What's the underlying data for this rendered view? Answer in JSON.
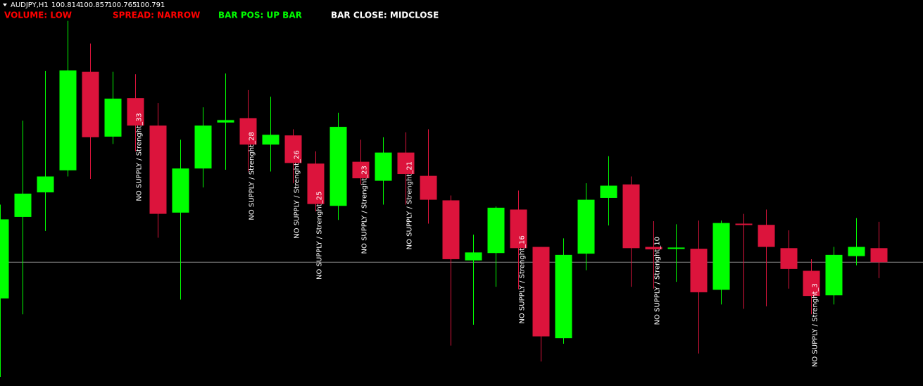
{
  "chart_data": {
    "type": "candlestick",
    "symbol": "AUDJPY,H1",
    "quote": [
      100.814,
      100.857,
      100.765,
      100.791
    ],
    "status": [
      {
        "label": "VOLUME: LOW",
        "color": "#ff0000"
      },
      {
        "label": "SPREAD: NARROW",
        "color": "#ff0000"
      },
      {
        "label": "BAR POS: UP BAR",
        "color": "#00ff00"
      },
      {
        "label": "BAR CLOSE: MIDCLOSE",
        "color": "#ffffff"
      }
    ],
    "up_color": "#00ff00",
    "down_color": "#dc143c",
    "ylim": [
      100.589,
      101.219
    ],
    "open": [
      100.732,
      100.865,
      100.905,
      100.941,
      101.102,
      100.996,
      101.059,
      101.014,
      100.872,
      100.944,
      101.019,
      101.026,
      100.983,
      100.998,
      100.952,
      100.883,
      100.955,
      100.924,
      100.97,
      100.932,
      100.892,
      100.794,
      100.806,
      100.877,
      100.816,
      100.667,
      100.805,
      100.896,
      100.918,
      100.816,
      100.813,
      100.813,
      100.746,
      100.854,
      100.852,
      100.814,
      100.777,
      100.737,
      100.801,
      100.814
    ],
    "high": [
      100.885,
      101.022,
      101.103,
      101.185,
      101.148,
      101.102,
      101.098,
      101.051,
      100.991,
      101.044,
      101.099,
      101.072,
      101.061,
      101.008,
      100.972,
      101.035,
      100.991,
      100.995,
      101.003,
      101.008,
      100.9,
      100.836,
      100.882,
      100.908,
      100.816,
      100.83,
      100.92,
      100.964,
      100.931,
      100.858,
      100.853,
      100.859,
      100.859,
      100.87,
      100.877,
      100.843,
      100.796,
      100.816,
      100.863,
      100.857
    ],
    "low": [
      100.604,
      100.706,
      100.842,
      100.931,
      100.927,
      100.984,
      100.972,
      100.831,
      100.73,
      100.913,
      100.942,
      100.939,
      100.939,
      100.92,
      100.874,
      100.86,
      100.918,
      100.885,
      100.885,
      100.854,
      100.655,
      100.689,
      100.751,
      100.747,
      100.629,
      100.658,
      100.778,
      100.851,
      100.751,
      100.748,
      100.759,
      100.642,
      100.722,
      100.715,
      100.719,
      100.748,
      100.706,
      100.722,
      100.786,
      100.765
    ],
    "close": [
      100.861,
      100.903,
      100.931,
      101.104,
      100.995,
      101.058,
      101.014,
      100.87,
      100.944,
      101.014,
      101.023,
      100.983,
      100.999,
      100.953,
      100.886,
      101.012,
      100.928,
      100.97,
      100.935,
      100.893,
      100.796,
      100.807,
      100.88,
      100.814,
      100.67,
      100.803,
      100.893,
      100.916,
      100.814,
      100.812,
      100.815,
      100.742,
      100.855,
      100.852,
      100.816,
      100.78,
      100.736,
      100.803,
      100.816,
      100.791
    ],
    "annotations": [
      null,
      null,
      null,
      null,
      null,
      null,
      "NO SUPPLY / Strenght_33",
      null,
      null,
      null,
      null,
      "NO SUPPLY / Strenght_28",
      null,
      "NO SUPPLY / Strenght_26",
      "NO SUPPLY / Strenght_25",
      null,
      "NO SUPPLY / Strenght_23",
      null,
      "NO SUPPLY / Strenght_21",
      null,
      null,
      null,
      null,
      "NO SUPPLY / Strenght_16",
      null,
      null,
      null,
      null,
      null,
      "NO SUPPLY / Strenght_10",
      null,
      null,
      null,
      null,
      null,
      null,
      "NO SUPPLY / Strenght_3",
      null,
      null,
      null
    ]
  }
}
